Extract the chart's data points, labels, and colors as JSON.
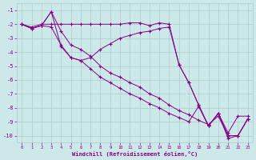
{
  "xlabel": "Windchill (Refroidissement éolien,°C)",
  "background_color": "#cce8e8",
  "line_color": "#880088",
  "grid_color": "#aacccc",
  "series": [
    {
      "x": [
        0,
        1,
        2,
        3,
        4,
        5,
        6,
        7,
        8,
        9,
        10,
        11,
        12,
        13,
        14,
        15,
        16,
        17,
        18,
        19,
        20,
        21,
        22,
        23
      ],
      "y": [
        -2.0,
        -2.3,
        -2.1,
        -1.1,
        -2.5,
        -3.5,
        -3.8,
        -4.3,
        -5.0,
        -5.5,
        -5.8,
        -6.2,
        -6.5,
        -7.0,
        -7.3,
        -7.8,
        -8.2,
        -8.5,
        -8.9,
        -9.2,
        -8.6,
        -10.0,
        -10.0,
        -8.8
      ]
    },
    {
      "x": [
        0,
        1,
        2,
        3,
        4,
        5,
        6,
        7,
        8,
        9,
        10,
        11,
        12,
        13,
        14,
        15,
        16,
        17,
        18,
        19,
        20,
        21,
        22,
        23
      ],
      "y": [
        -2.0,
        -2.2,
        -2.0,
        -2.0,
        -2.0,
        -2.0,
        -2.0,
        -2.0,
        -2.0,
        -2.0,
        -2.0,
        -1.9,
        -1.9,
        -2.1,
        -1.9,
        -2.0,
        -4.9,
        -6.2,
        -7.8,
        -9.3,
        -8.4,
        -10.0,
        -10.0,
        -8.8
      ]
    },
    {
      "x": [
        0,
        1,
        2,
        3,
        4,
        5,
        6,
        7,
        8,
        9,
        10,
        11,
        12,
        13,
        14,
        15,
        16,
        17,
        18,
        19,
        20,
        21,
        22,
        23
      ],
      "y": [
        -2.0,
        -2.3,
        -2.1,
        -2.2,
        -3.5,
        -4.4,
        -4.6,
        -5.2,
        -5.8,
        -6.2,
        -6.6,
        -7.0,
        -7.3,
        -7.7,
        -8.0,
        -8.4,
        -8.7,
        -9.0,
        -7.9,
        -9.3,
        -8.4,
        -10.2,
        -10.0,
        -8.8
      ]
    },
    {
      "x": [
        0,
        1,
        2,
        3,
        4,
        5,
        6,
        7,
        8,
        9,
        10,
        11,
        12,
        13,
        14,
        15,
        16,
        17,
        18,
        19,
        20,
        21,
        22,
        23
      ],
      "y": [
        -2.0,
        -2.3,
        -2.1,
        -1.1,
        -3.6,
        -4.4,
        -4.6,
        -4.4,
        -3.8,
        -3.4,
        -3.0,
        -2.8,
        -2.6,
        -2.5,
        -2.3,
        -2.2,
        -4.9,
        -6.2,
        -7.8,
        -9.3,
        -8.4,
        -9.8,
        -8.6,
        -8.6
      ]
    }
  ],
  "xlim": [
    -0.5,
    23.5
  ],
  "ylim": [
    -10.5,
    -0.5
  ],
  "yticks": [
    -1,
    -2,
    -3,
    -4,
    -5,
    -6,
    -7,
    -8,
    -9,
    -10
  ],
  "xticks": [
    0,
    1,
    2,
    3,
    4,
    5,
    6,
    7,
    8,
    9,
    10,
    11,
    12,
    13,
    14,
    15,
    16,
    17,
    18,
    19,
    20,
    21,
    22,
    23
  ],
  "marker": "+"
}
